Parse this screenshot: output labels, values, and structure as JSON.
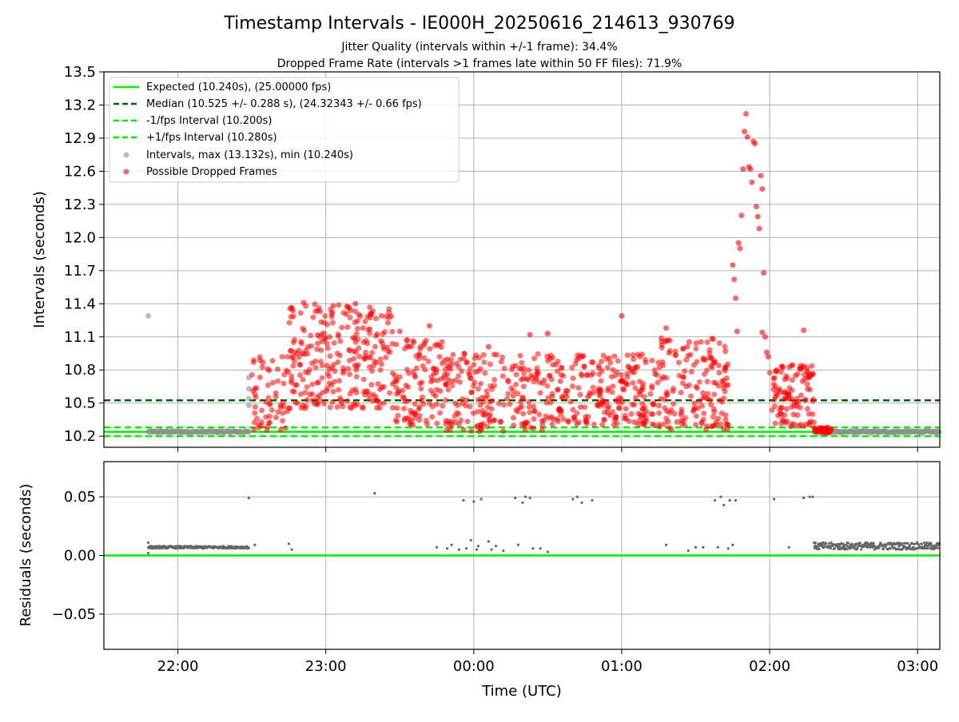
{
  "chart_data": {
    "type": "scatter",
    "title": "Timestamp Intervals - IE000H_20250616_214613_930769",
    "subtitle_1": "Jitter Quality (intervals within +/-1 frame): 34.4%",
    "subtitle_2": "Dropped Frame Rate (intervals >1 frames late within 50 FF files): 71.9%",
    "colors": {
      "expected": "#00ee00",
      "median": "#006400",
      "interval": "#909090",
      "dropped": "#ff0000",
      "residual": "#666666",
      "grid": "#b0b0b0"
    },
    "xlabel": "Time (UTC)",
    "x_ticks": [
      "22:00",
      "23:00",
      "00:00",
      "01:00",
      "02:00",
      "03:00"
    ],
    "x_tick_hours": [
      22,
      23,
      24,
      25,
      26,
      27
    ],
    "xlim_hours": [
      21.5,
      27.15
    ],
    "top": {
      "ylabel": "Intervals (seconds)",
      "ylim": [
        10.1,
        13.5
      ],
      "y_ticks": [
        "10.2",
        "10.5",
        "10.8",
        "11.1",
        "11.4",
        "11.7",
        "12.0",
        "12.3",
        "12.6",
        "12.9",
        "13.2",
        "13.5"
      ],
      "y_tick_values": [
        10.2,
        10.5,
        10.8,
        11.1,
        11.4,
        11.7,
        12.0,
        12.3,
        12.6,
        12.9,
        13.2,
        13.5
      ],
      "hlines": [
        {
          "name": "expected",
          "y": 10.24,
          "style": "solid"
        },
        {
          "name": "median",
          "y": 10.525,
          "style": "dashed"
        },
        {
          "name": "minus_interval",
          "y": 10.2,
          "style": "dashed"
        },
        {
          "name": "plus_interval",
          "y": 10.28,
          "style": "dashed"
        }
      ],
      "legend_position": "upper-left",
      "legend": [
        "Expected (10.240s), (25.00000 fps)",
        "Median (10.525 +/- 0.288 s), (24.32343 +/- 0.66 fps)",
        "-1/fps Interval (10.200s)",
        "+1/fps Interval (10.280s)",
        "Intervals, max (13.132s), min (10.240s)",
        "Possible Dropped Frames"
      ],
      "interval_points": [
        [
          21.8,
          11.29
        ],
        [
          22.48,
          10.73
        ],
        [
          22.48,
          10.63
        ],
        [
          22.48,
          10.48
        ],
        [
          22.48,
          10.54
        ]
      ],
      "interval_bands": [
        {
          "x_start": 21.8,
          "x_end": 22.48,
          "y": 10.24,
          "spread": 0.02
        },
        {
          "x_start": 26.3,
          "x_end": 27.15,
          "y": 10.24,
          "spread": 0.02
        }
      ],
      "dropped_clusters": [
        {
          "x_start": 22.5,
          "x_end": 22.75,
          "y_low": 10.25,
          "y_high": 10.95,
          "count": 60
        },
        {
          "x_start": 22.75,
          "x_end": 23.45,
          "y_low": 10.45,
          "y_high": 11.4,
          "count": 260
        },
        {
          "x_start": 23.45,
          "x_end": 23.8,
          "y_low": 10.3,
          "y_high": 11.1,
          "count": 110
        },
        {
          "x_start": 23.8,
          "x_end": 24.5,
          "y_low": 10.24,
          "y_high": 10.95,
          "count": 200
        },
        {
          "x_start": 24.5,
          "x_end": 25.25,
          "y_low": 10.3,
          "y_high": 10.95,
          "count": 230
        },
        {
          "x_start": 25.25,
          "x_end": 25.72,
          "y_low": 10.26,
          "y_high": 11.1,
          "count": 160
        },
        {
          "x_start": 26.0,
          "x_end": 26.3,
          "y_low": 10.28,
          "y_high": 10.85,
          "count": 110
        },
        {
          "x_start": 26.3,
          "x_end": 26.42,
          "y_low": 10.23,
          "y_high": 10.28,
          "count": 40
        }
      ],
      "dropped_points": [
        [
          22.85,
          11.41
        ],
        [
          23.05,
          11.38
        ],
        [
          23.15,
          11.37
        ],
        [
          23.2,
          11.4
        ],
        [
          23.5,
          11.15
        ],
        [
          23.7,
          11.2
        ],
        [
          23.85,
          10.85
        ],
        [
          24.1,
          11.01
        ],
        [
          24.38,
          11.12
        ],
        [
          24.5,
          11.13
        ],
        [
          25.0,
          11.29
        ],
        [
          25.3,
          11.18
        ],
        [
          25.95,
          11.14
        ],
        [
          26.23,
          11.16
        ],
        [
          25.75,
          11.75
        ],
        [
          25.76,
          11.62
        ],
        [
          25.77,
          11.45
        ],
        [
          25.78,
          11.15
        ],
        [
          25.79,
          11.95
        ],
        [
          25.8,
          11.9
        ],
        [
          25.81,
          12.2
        ],
        [
          25.82,
          12.62
        ],
        [
          25.83,
          12.96
        ],
        [
          25.84,
          13.12
        ],
        [
          25.85,
          12.91
        ],
        [
          25.86,
          12.64
        ],
        [
          25.87,
          12.62
        ],
        [
          25.88,
          12.5
        ],
        [
          25.89,
          12.87
        ],
        [
          25.9,
          12.85
        ],
        [
          25.91,
          12.28
        ],
        [
          25.92,
          12.19
        ],
        [
          25.93,
          12.08
        ],
        [
          25.94,
          12.56
        ],
        [
          25.95,
          12.44
        ],
        [
          25.96,
          11.68
        ],
        [
          25.97,
          11.1
        ],
        [
          25.98,
          10.96
        ],
        [
          25.99,
          10.92
        ]
      ]
    },
    "bottom": {
      "ylabel": "Residuals (seconds)",
      "ylim": [
        -0.08,
        0.08
      ],
      "y_ticks": [
        "−0.05",
        "0.00",
        "0.05"
      ],
      "y_tick_values": [
        -0.05,
        0.0,
        0.05
      ],
      "zero_line": 0.0,
      "residual_bands": [
        {
          "x_start": 21.8,
          "x_end": 22.48,
          "y": 0.007,
          "spread": 0.001
        },
        {
          "x_start": 26.3,
          "x_end": 27.15,
          "y": 0.008,
          "spread": 0.003
        }
      ],
      "residual_points": [
        [
          21.8,
          0.011
        ],
        [
          21.8,
          0.002
        ],
        [
          22.48,
          0.049
        ],
        [
          22.52,
          0.009
        ],
        [
          22.75,
          0.01
        ],
        [
          22.77,
          0.005
        ],
        [
          23.33,
          0.053
        ],
        [
          23.75,
          0.007
        ],
        [
          23.82,
          0.006
        ],
        [
          23.85,
          0.009
        ],
        [
          23.9,
          0.005
        ],
        [
          23.93,
          0.047
        ],
        [
          23.95,
          0.006
        ],
        [
          23.98,
          0.013
        ],
        [
          24.0,
          0.046
        ],
        [
          24.02,
          0.005
        ],
        [
          24.03,
          0.008
        ],
        [
          24.05,
          0.048
        ],
        [
          24.1,
          0.012
        ],
        [
          24.12,
          0.005
        ],
        [
          24.15,
          0.008
        ],
        [
          24.2,
          0.004
        ],
        [
          24.28,
          0.049
        ],
        [
          24.3,
          0.009
        ],
        [
          24.33,
          0.045
        ],
        [
          24.35,
          0.05
        ],
        [
          24.38,
          0.049
        ],
        [
          24.4,
          0.006
        ],
        [
          24.45,
          0.006
        ],
        [
          24.5,
          0.003
        ],
        [
          24.67,
          0.048
        ],
        [
          24.7,
          0.05
        ],
        [
          24.73,
          0.045
        ],
        [
          24.8,
          0.047
        ],
        [
          25.3,
          0.009
        ],
        [
          25.45,
          0.004
        ],
        [
          25.5,
          0.007
        ],
        [
          25.55,
          0.007
        ],
        [
          25.63,
          0.047
        ],
        [
          25.67,
          0.05
        ],
        [
          25.69,
          0.043
        ],
        [
          25.73,
          0.047
        ],
        [
          25.77,
          0.047
        ],
        [
          25.65,
          0.007
        ],
        [
          25.72,
          0.006
        ],
        [
          25.75,
          0.009
        ],
        [
          26.03,
          0.048
        ],
        [
          26.13,
          0.007
        ],
        [
          26.23,
          0.049
        ],
        [
          26.27,
          0.05
        ],
        [
          26.29,
          0.05
        ]
      ]
    }
  }
}
